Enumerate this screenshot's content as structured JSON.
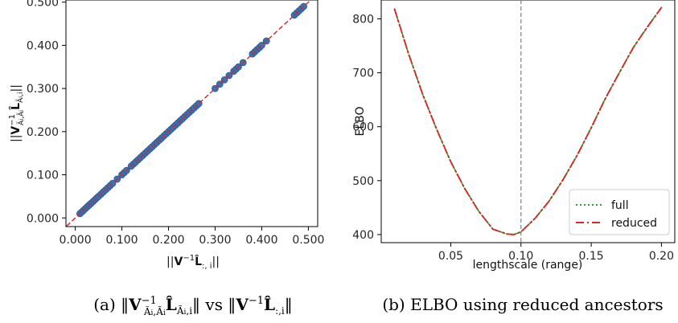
{
  "chart_data": [
    {
      "type": "scatter",
      "xlabel": "||V⁻¹L̂:,i||",
      "ylabel": "||V⁻¹Ã_i,Ã_i L̂Ã_i,i||",
      "xlim": [
        -0.02,
        0.52
      ],
      "ylim": [
        -0.02,
        0.505
      ],
      "xticks": [
        "0.000",
        "0.100",
        "0.200",
        "0.300",
        "0.400",
        "0.500"
      ],
      "yticks": [
        "0.000",
        "0.100",
        "0.200",
        "0.300",
        "0.400",
        "0.500"
      ],
      "reference_line": "y = x",
      "colors": {
        "points": "#3b70b3",
        "point_edge": "#2a5a96",
        "line": "#d62728"
      },
      "points_x": [
        0.01,
        0.014,
        0.018,
        0.022,
        0.026,
        0.03,
        0.034,
        0.038,
        0.042,
        0.046,
        0.05,
        0.055,
        0.06,
        0.065,
        0.07,
        0.075,
        0.08,
        0.09,
        0.1,
        0.105,
        0.11,
        0.12,
        0.125,
        0.13,
        0.135,
        0.14,
        0.145,
        0.15,
        0.155,
        0.16,
        0.165,
        0.17,
        0.175,
        0.18,
        0.185,
        0.19,
        0.195,
        0.2,
        0.205,
        0.21,
        0.215,
        0.22,
        0.225,
        0.23,
        0.235,
        0.24,
        0.245,
        0.25,
        0.255,
        0.26,
        0.265,
        0.3,
        0.31,
        0.32,
        0.33,
        0.34,
        0.345,
        0.35,
        0.36,
        0.38,
        0.385,
        0.39,
        0.395,
        0.4,
        0.41,
        0.47,
        0.475,
        0.48,
        0.485,
        0.49
      ],
      "points_y": [
        0.01,
        0.014,
        0.018,
        0.022,
        0.026,
        0.03,
        0.034,
        0.038,
        0.042,
        0.046,
        0.05,
        0.055,
        0.06,
        0.065,
        0.07,
        0.075,
        0.08,
        0.09,
        0.1,
        0.105,
        0.11,
        0.12,
        0.125,
        0.13,
        0.135,
        0.14,
        0.145,
        0.15,
        0.155,
        0.16,
        0.165,
        0.17,
        0.175,
        0.18,
        0.185,
        0.19,
        0.195,
        0.2,
        0.205,
        0.21,
        0.215,
        0.22,
        0.225,
        0.23,
        0.235,
        0.24,
        0.245,
        0.25,
        0.255,
        0.26,
        0.265,
        0.3,
        0.31,
        0.32,
        0.33,
        0.34,
        0.345,
        0.35,
        0.36,
        0.38,
        0.385,
        0.39,
        0.395,
        0.4,
        0.41,
        0.47,
        0.475,
        0.48,
        0.485,
        0.49
      ],
      "caption": "(a) ||V⁻¹Ã_i,Ã_i L̂Ã_i,i|| vs ||V⁻¹L̂:,i||"
    },
    {
      "type": "line",
      "xlabel": "lengthscale (range)",
      "ylabel": "ELBO",
      "xlim": [
        0.0005,
        0.2095
      ],
      "ylim": [
        385,
        835
      ],
      "xticks": [
        {
          "v": 0.05,
          "label": "0.05"
        },
        {
          "v": 0.1,
          "label": "0.10"
        },
        {
          "v": 0.15,
          "label": "0.15"
        },
        {
          "v": 0.2,
          "label": "0.20"
        }
      ],
      "yticks": [
        {
          "v": 400,
          "label": "400"
        },
        {
          "v": 500,
          "label": "500"
        },
        {
          "v": 600,
          "label": "600"
        },
        {
          "v": 700,
          "label": "700"
        },
        {
          "v": 800,
          "label": "800"
        }
      ],
      "vline_x": 0.1,
      "legend": "bottom-right",
      "x": [
        0.01,
        0.02,
        0.03,
        0.04,
        0.05,
        0.06,
        0.07,
        0.08,
        0.09,
        0.095,
        0.1,
        0.11,
        0.12,
        0.13,
        0.14,
        0.15,
        0.16,
        0.17,
        0.18,
        0.19,
        0.2
      ],
      "series": [
        {
          "name": "full",
          "color": "#2ca02c",
          "style": "dotted",
          "values": [
            818,
            735,
            660,
            595,
            535,
            485,
            443,
            410,
            401,
            400,
            405,
            430,
            462,
            502,
            547,
            598,
            652,
            700,
            747,
            785,
            821
          ]
        },
        {
          "name": "reduced",
          "color": "#d62728",
          "style": "dashdot",
          "values": [
            818,
            735,
            660,
            595,
            535,
            485,
            443,
            410,
            401,
            400,
            405,
            430,
            462,
            502,
            547,
            598,
            652,
            700,
            747,
            785,
            821
          ]
        }
      ],
      "caption": "(b) ELBO using reduced ancestors"
    }
  ]
}
